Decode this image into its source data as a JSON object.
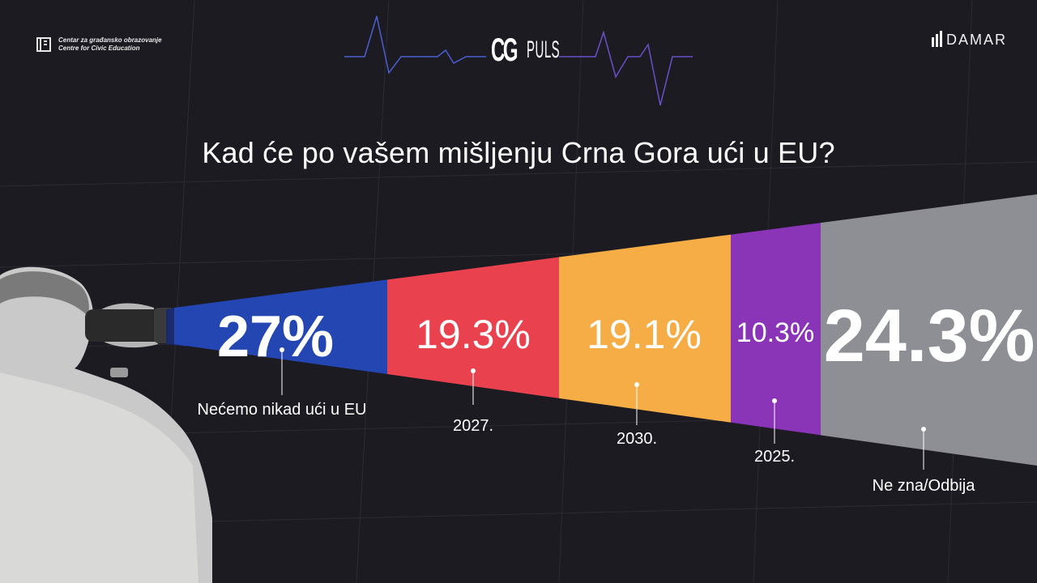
{
  "header": {
    "org_left_line1": "Centar za građansko obrazovanje",
    "org_left_line2": "Centre for Civic Education",
    "brand_left": "CG",
    "brand_right": "PULS",
    "org_right": "DAMAR"
  },
  "chart_data": {
    "type": "bar",
    "title": "Kad će po vašem mišljenju Crna Gora ući u EU?",
    "categories": [
      "Nećemo nikad ući u EU",
      "2027.",
      "2030.",
      "2025.",
      "Ne zna/Odbija"
    ],
    "values": [
      27,
      19.3,
      19.1,
      10.3,
      24.3
    ],
    "value_labels": [
      "27%",
      "19.3%",
      "19.1%",
      "10.3%",
      "24.3%"
    ],
    "colors": [
      "#2446b3",
      "#e9424e",
      "#f6ad45",
      "#8a34b8",
      "#8e8f95"
    ],
    "unit": "%",
    "legend": "none",
    "grid": false
  }
}
